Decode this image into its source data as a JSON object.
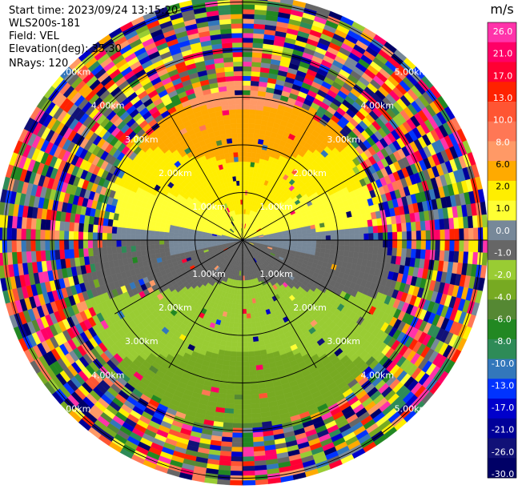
{
  "header": {
    "start_time": "Start time: 2023/09/24 13:15:20",
    "instrument": "WLS200s-181",
    "field": "Field: VEL",
    "elevation": "Elevation(deg): 35.30",
    "nrays": "NRays: 120"
  },
  "colorbar": {
    "unit": "m/s",
    "tick_labels": [
      "26.0",
      "21.0",
      "17.0",
      "13.0",
      "10.0",
      "8.0",
      "6.0",
      "2.0",
      "1.0",
      "0.0",
      "-1.0",
      "-2.0",
      "-4.0",
      "-6.0",
      "-8.0",
      "-10.0",
      "-13.0",
      "-17.0",
      "-21.0",
      "-26.0",
      "-30.0"
    ],
    "colors": [
      "#ff33aa",
      "#ff0066",
      "#ff0033",
      "#ff2200",
      "#ff5533",
      "#ff7755",
      "#ff9966",
      "#ffaa00",
      "#ffee00",
      "#ffff33",
      "#778899",
      "#666666",
      "#99cc33",
      "#77aa22",
      "#558833",
      "#228822",
      "#2e8b57",
      "#3377bb",
      "#0033ff",
      "#0000cc",
      "#000099",
      "#111177",
      "#000066"
    ]
  },
  "chart_data": {
    "type": "ppi",
    "field": "VEL",
    "units": "m/s",
    "elevation_deg": 35.3,
    "nrays": 120,
    "range_rings_km": [
      1.0,
      2.0,
      3.0,
      4.0,
      5.0
    ],
    "ring_labels": [
      "1.00km",
      "2.00km",
      "3.00km",
      "4.00km",
      "5.00km"
    ],
    "max_range_km": 5.1,
    "velocity_range": [
      -30.0,
      26.0
    ],
    "gate_km": 0.1,
    "spoke_angles_deg": [
      0,
      30,
      60,
      90,
      120,
      150,
      180,
      210,
      240,
      270,
      300,
      330
    ],
    "velocity_profile": [
      {
        "dir": "north",
        "range_km": [
          0.5,
          3.0
        ],
        "velocity": [
          1.0,
          8.0
        ]
      },
      {
        "dir": "south",
        "range_km": [
          0.5,
          3.5
        ],
        "velocity": [
          -2.0,
          -6.0
        ]
      },
      {
        "dir": "east-west",
        "range_km": [
          0.0,
          1.5
        ],
        "velocity": [
          0.0,
          0.0
        ]
      }
    ]
  }
}
